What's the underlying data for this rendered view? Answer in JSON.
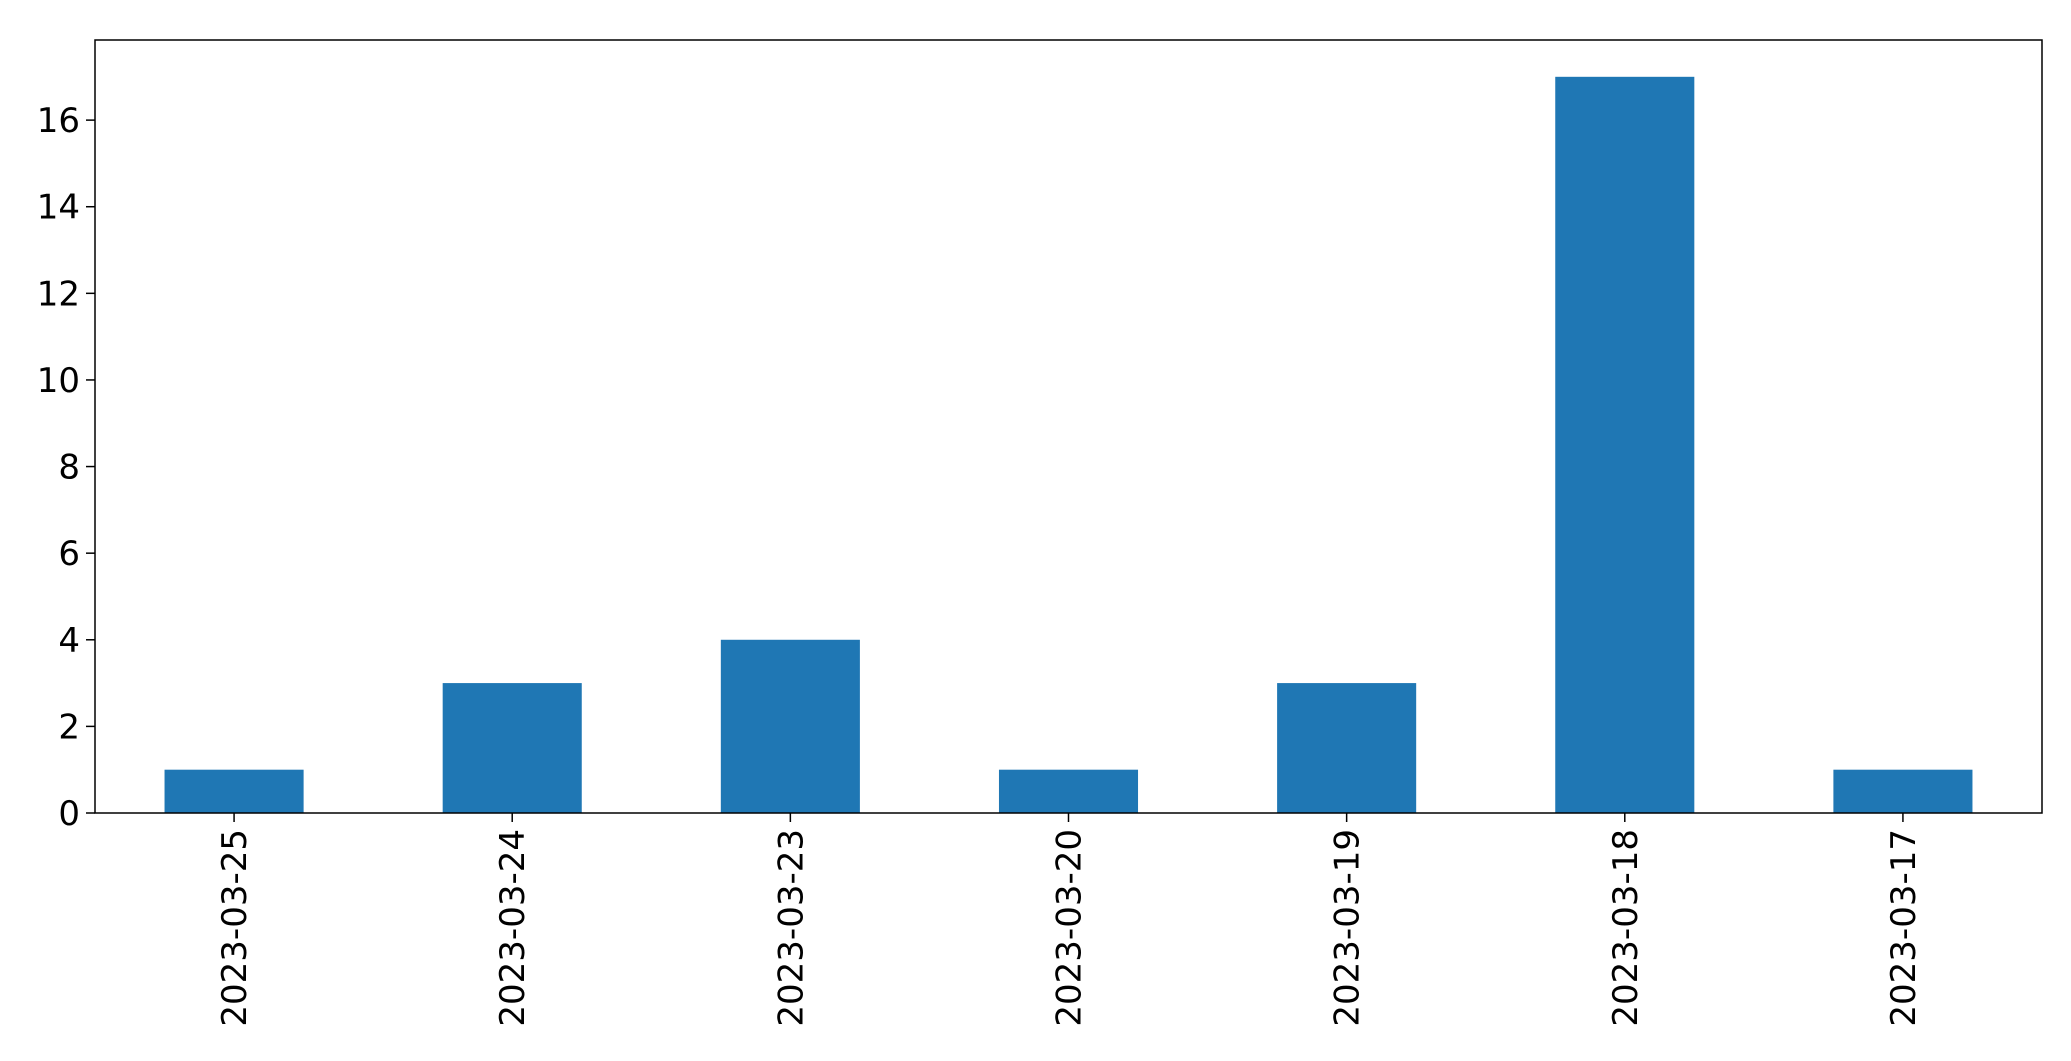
{
  "chart_data": {
    "type": "bar",
    "categories": [
      "2023-03-25",
      "2023-03-24",
      "2023-03-23",
      "2023-03-20",
      "2023-03-19",
      "2023-03-18",
      "2023-03-17"
    ],
    "values": [
      1,
      3,
      4,
      1,
      3,
      17,
      1
    ],
    "yticks": [
      0,
      2,
      4,
      6,
      8,
      10,
      12,
      14,
      16
    ],
    "ylim": [
      0,
      17.85
    ],
    "title": "",
    "xlabel": "",
    "ylabel": "",
    "grid": false,
    "bar_color": "#1f77b4",
    "axis_color": "#000000"
  }
}
